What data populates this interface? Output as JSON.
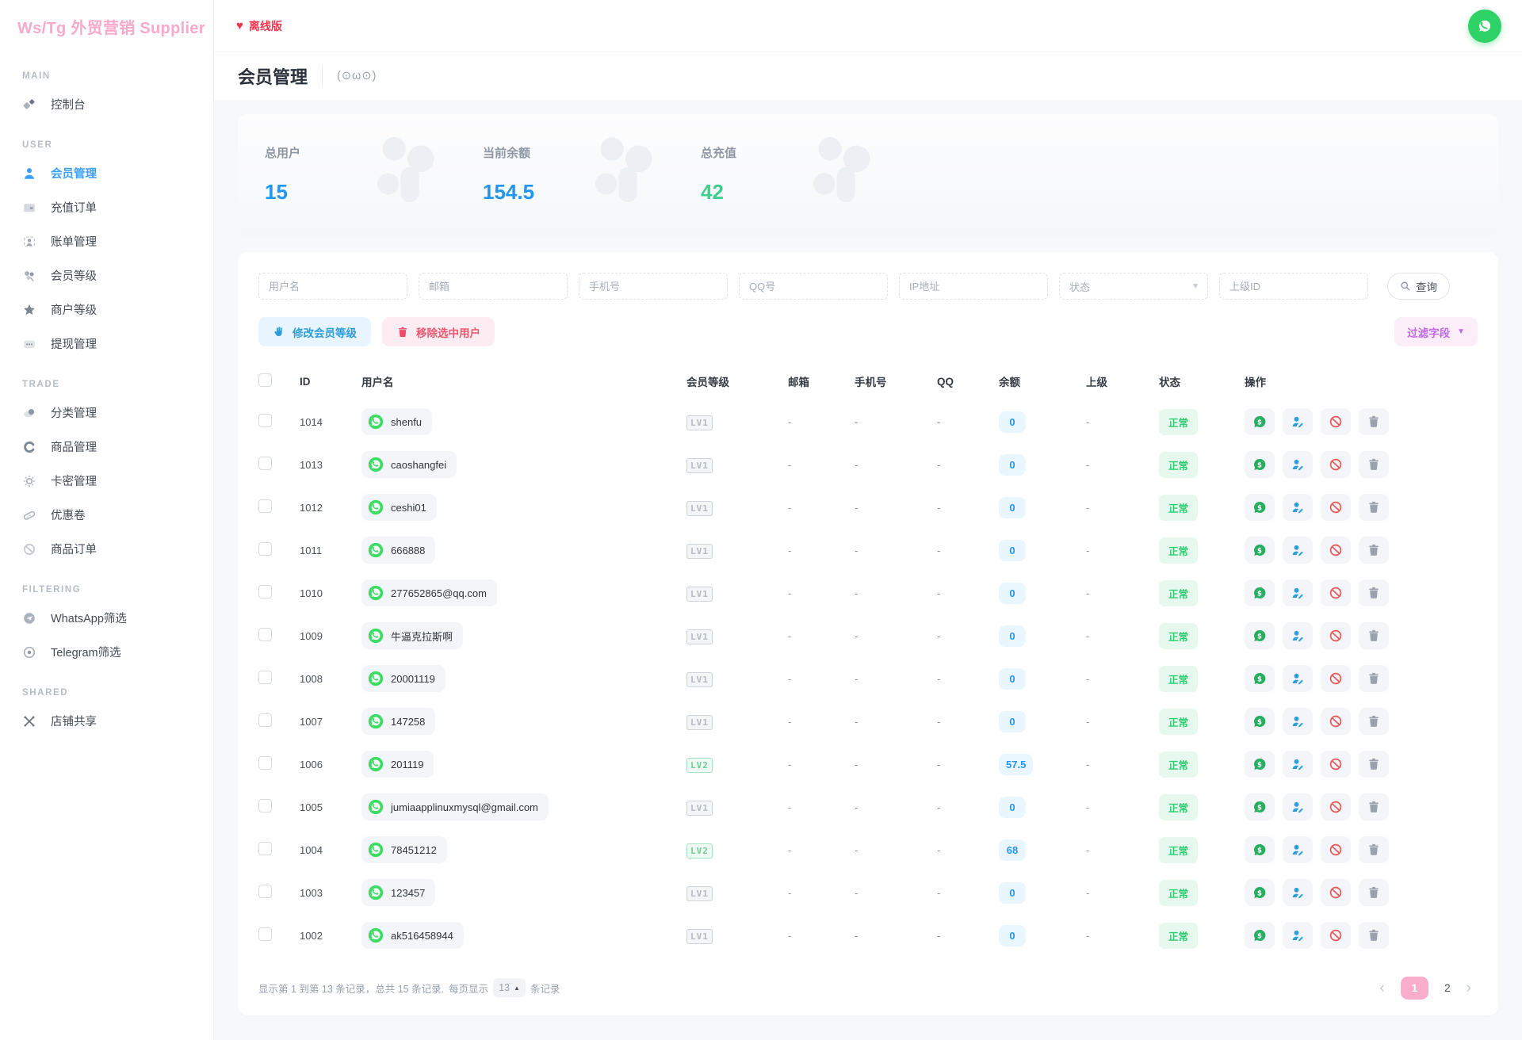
{
  "app": {
    "logo": "Ws/Tg 外贸营销 Supplier",
    "collapse_icon": "«"
  },
  "topbar": {
    "offline_label": "离线版",
    "offline_icon": "heart-icon"
  },
  "page": {
    "title": "会员管理",
    "emoticon": "(⊙ω⊙)"
  },
  "stats": [
    {
      "label": "总用户",
      "value": "15",
      "color": "#2196f3"
    },
    {
      "label": "当前余额",
      "value": "154.5",
      "color": "#2196f3"
    },
    {
      "label": "总充值",
      "value": "42",
      "color": "#3ecf8e"
    }
  ],
  "sidebar": {
    "sections": [
      {
        "label": "MAIN",
        "items": [
          {
            "key": "dashboard",
            "label": "控制台",
            "icon": "dashboard-icon",
            "active": false
          }
        ]
      },
      {
        "label": "USER",
        "items": [
          {
            "key": "member-management",
            "label": "会员管理",
            "icon": "user-icon",
            "active": true
          },
          {
            "key": "recharge-orders",
            "label": "充值订单",
            "icon": "card-icon",
            "active": false
          },
          {
            "key": "bill-management",
            "label": "账单管理",
            "icon": "bill-icon",
            "active": false
          },
          {
            "key": "member-level",
            "label": "会员等级",
            "icon": "clover-icon",
            "active": false
          },
          {
            "key": "merchant-level",
            "label": "商户等级",
            "icon": "star-icon",
            "active": false
          },
          {
            "key": "withdraw-management",
            "label": "提现管理",
            "icon": "ellipsis-box-icon",
            "active": false
          }
        ]
      },
      {
        "label": "TRADE",
        "items": [
          {
            "key": "category-management",
            "label": "分类管理",
            "icon": "cloud-icon",
            "active": false
          },
          {
            "key": "product-management",
            "label": "商品管理",
            "icon": "c-circle-icon",
            "active": false
          },
          {
            "key": "card-key-management",
            "label": "卡密管理",
            "icon": "gear-icon",
            "active": false
          },
          {
            "key": "coupons",
            "label": "优惠卷",
            "icon": "ticket-icon",
            "active": false
          },
          {
            "key": "product-orders",
            "label": "商品订单",
            "icon": "ban-icon",
            "active": false
          }
        ]
      },
      {
        "label": "FILTERING",
        "items": [
          {
            "key": "whatsapp-filter",
            "label": "WhatsApp筛选",
            "icon": "plane-circle-icon",
            "active": false
          },
          {
            "key": "telegram-filter",
            "label": "Telegram筛选",
            "icon": "target-circle-icon",
            "active": false
          }
        ]
      },
      {
        "label": "SHARED",
        "items": [
          {
            "key": "shop-share",
            "label": "店铺共享",
            "icon": "share-x-icon",
            "active": false
          }
        ]
      }
    ]
  },
  "filters": {
    "fields": [
      {
        "key": "username",
        "placeholder": "用户名"
      },
      {
        "key": "email",
        "placeholder": "邮箱"
      },
      {
        "key": "phone",
        "placeholder": "手机号"
      },
      {
        "key": "qq",
        "placeholder": "QQ号"
      },
      {
        "key": "ip",
        "placeholder": "IP地址"
      }
    ],
    "status_placeholder": "状态",
    "parent_placeholder": "上级ID",
    "search_label": "查询"
  },
  "actions": {
    "modify_level": "修改会员等级",
    "remove_selected": "移除选中用户",
    "filter_fields": "过滤字段"
  },
  "table": {
    "headers": [
      "ID",
      "用户名",
      "会员等级",
      "邮箱",
      "手机号",
      "QQ",
      "余额",
      "上级",
      "状态",
      "操作"
    ],
    "rows": [
      {
        "id": "1014",
        "username": "shenfu",
        "level": "LV1",
        "level_variant": "gray",
        "email": "-",
        "phone": "-",
        "qq": "-",
        "balance": "0",
        "parent": "-",
        "status": "正常"
      },
      {
        "id": "1013",
        "username": "caoshangfei",
        "level": "LV1",
        "level_variant": "gray",
        "email": "-",
        "phone": "-",
        "qq": "-",
        "balance": "0",
        "parent": "-",
        "status": "正常"
      },
      {
        "id": "1012",
        "username": "ceshi01",
        "level": "LV1",
        "level_variant": "gray",
        "email": "-",
        "phone": "-",
        "qq": "-",
        "balance": "0",
        "parent": "-",
        "status": "正常"
      },
      {
        "id": "1011",
        "username": "666888",
        "level": "LV1",
        "level_variant": "gray",
        "email": "-",
        "phone": "-",
        "qq": "-",
        "balance": "0",
        "parent": "-",
        "status": "正常"
      },
      {
        "id": "1010",
        "username": "277652865@qq.com",
        "level": "LV1",
        "level_variant": "gray",
        "email": "-",
        "phone": "-",
        "qq": "-",
        "balance": "0",
        "parent": "-",
        "status": "正常"
      },
      {
        "id": "1009",
        "username": "牛逼克拉斯啊",
        "level": "LV1",
        "level_variant": "gray",
        "email": "-",
        "phone": "-",
        "qq": "-",
        "balance": "0",
        "parent": "-",
        "status": "正常"
      },
      {
        "id": "1008",
        "username": "20001119",
        "level": "LV1",
        "level_variant": "gray",
        "email": "-",
        "phone": "-",
        "qq": "-",
        "balance": "0",
        "parent": "-",
        "status": "正常"
      },
      {
        "id": "1007",
        "username": "147258",
        "level": "LV1",
        "level_variant": "gray",
        "email": "-",
        "phone": "-",
        "qq": "-",
        "balance": "0",
        "parent": "-",
        "status": "正常"
      },
      {
        "id": "1006",
        "username": "201119",
        "level": "LV2",
        "level_variant": "green",
        "email": "-",
        "phone": "-",
        "qq": "-",
        "balance": "57.5",
        "parent": "-",
        "status": "正常"
      },
      {
        "id": "1005",
        "username": "jumiaapplinuxmysql@gmail.com",
        "level": "LV1",
        "level_variant": "gray",
        "email": "-",
        "phone": "-",
        "qq": "-",
        "balance": "0",
        "parent": "-",
        "status": "正常"
      },
      {
        "id": "1004",
        "username": "78451212",
        "level": "LV2",
        "level_variant": "green",
        "email": "-",
        "phone": "-",
        "qq": "-",
        "balance": "68",
        "parent": "-",
        "status": "正常"
      },
      {
        "id": "1003",
        "username": "123457",
        "level": "LV1",
        "level_variant": "gray",
        "email": "-",
        "phone": "-",
        "qq": "-",
        "balance": "0",
        "parent": "-",
        "status": "正常"
      },
      {
        "id": "1002",
        "username": "ak516458944",
        "level": "LV1",
        "level_variant": "gray",
        "email": "-",
        "phone": "-",
        "qq": "-",
        "balance": "0",
        "parent": "-",
        "status": "正常"
      }
    ]
  },
  "pagination": {
    "summary": "显示第 1 到第 13 条记录，总共 15 条记录.",
    "per_page_label": "每页显示",
    "per_page_value": "13",
    "per_page_suffix": "条记录",
    "pages": [
      "1",
      "2"
    ],
    "active_page": "1"
  }
}
